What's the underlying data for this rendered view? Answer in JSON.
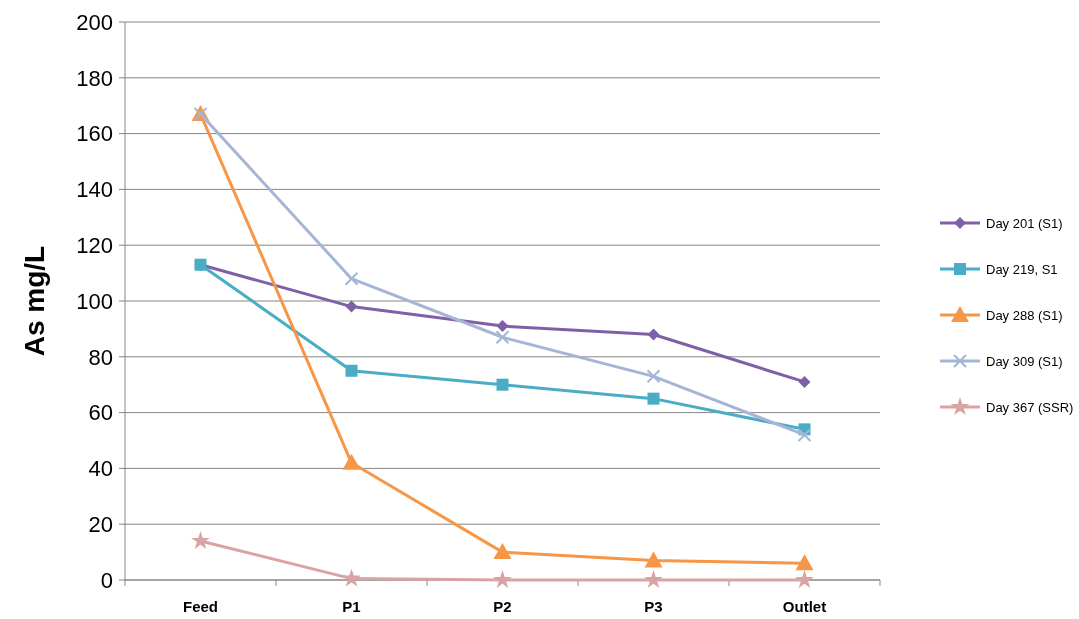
{
  "chart_data": {
    "type": "line",
    "ylabel": "As mg/L",
    "categories": [
      "Feed",
      "P1",
      "P2",
      "P3",
      "Outlet"
    ],
    "ylim": [
      0,
      200
    ],
    "yticks": [
      0,
      20,
      40,
      60,
      80,
      100,
      120,
      140,
      160,
      180,
      200
    ],
    "grid": "y",
    "legend": "right",
    "line_style": "solid",
    "series": [
      {
        "name": "Day 201 (S1)",
        "color": "#7f60a8",
        "marker": "diamond",
        "values": [
          113,
          98,
          91,
          88,
          71
        ]
      },
      {
        "name": "Day 219, S1",
        "color": "#4bacc6",
        "marker": "square",
        "values": [
          113,
          75,
          70,
          65,
          54
        ]
      },
      {
        "name": "Day 288 (S1)",
        "color": "#f79646",
        "marker": "triangle",
        "values": [
          167,
          42,
          10,
          7,
          6
        ]
      },
      {
        "name": "Day 309 (S1)",
        "color": "#a5b5d6",
        "marker": "cross",
        "values": [
          167,
          108,
          87,
          73,
          52
        ]
      },
      {
        "name": "Day 367 (SSR)",
        "color": "#d9a3a3",
        "marker": "star",
        "values": [
          14,
          0.5,
          0,
          0,
          0
        ]
      }
    ]
  }
}
